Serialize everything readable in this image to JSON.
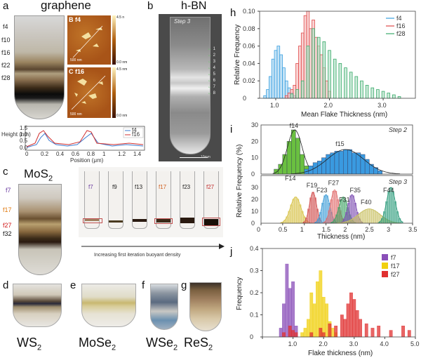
{
  "panels": {
    "a": {
      "letter": "a",
      "title": "graphene",
      "fractions": [
        "f4",
        "f10",
        "f16",
        "f22",
        "f28"
      ],
      "afm": [
        {
          "letter": "B",
          "tag": "f4",
          "scale_top": "4.5 n",
          "scale_bot": "0.0 nm",
          "scalebar": "500 nm"
        },
        {
          "letter": "C",
          "tag": "f16",
          "scale_top": "4.5 nm",
          "scale_bot": "0.0 nm",
          "scalebar": "500 nm"
        }
      ],
      "profile": {
        "ylabel": "Height (nm)",
        "xlabel": "Position (μm)",
        "legend": [
          "f4",
          "f16"
        ],
        "yticks": [
          "1.5",
          "1.0",
          "0.5",
          "0.0"
        ],
        "xticks": [
          "0",
          "0.2",
          "0.4",
          "0.6",
          "0.8",
          "1",
          "1.2",
          "1.4"
        ]
      }
    },
    "b": {
      "letter": "b",
      "title": "h-BN",
      "step": "Step 3",
      "fractions": [
        "1",
        "2",
        "3",
        "4",
        "5",
        "6",
        "7",
        "8"
      ],
      "scalebar": "10mm"
    },
    "c": {
      "letter": "c",
      "title": "MoS",
      "sub": "2",
      "fractions": [
        {
          "label": "f7",
          "color": "#6a3aa0"
        },
        {
          "label": "f17",
          "color": "#e07a10"
        },
        {
          "label": "f27",
          "color": "#d01818"
        },
        {
          "label": "f32",
          "color": "#111111"
        }
      ],
      "tubes": [
        {
          "label": "f7",
          "color": "#6a3aa0"
        },
        {
          "label": "f9",
          "color": "#222222"
        },
        {
          "label": "f13",
          "color": "#222222"
        },
        {
          "label": "f17",
          "color": "#d06020"
        },
        {
          "label": "f23",
          "color": "#222222"
        },
        {
          "label": "f27",
          "color": "#c03030"
        }
      ],
      "arrow_caption": "Increasing first iteration buoyant density"
    },
    "d": {
      "letter": "d",
      "name": "WS",
      "sub": "2"
    },
    "e": {
      "letter": "e",
      "name": "MoSe",
      "sub": "2"
    },
    "f": {
      "letter": "f",
      "name": "WSe",
      "sub": "2"
    },
    "g": {
      "letter": "g",
      "name": "ReS",
      "sub": "2"
    },
    "h": {
      "letter": "h"
    },
    "i": {
      "letter": "i",
      "step2": "Step 2",
      "step3": "Step 3"
    },
    "j": {
      "letter": "j"
    }
  },
  "chart_data": [
    {
      "id": "h",
      "type": "bar",
      "xlabel": "Mean Flake Thickness (nm)",
      "ylabel": "Relative Frequency",
      "xlim": [
        0.7,
        3.6
      ],
      "ylim": [
        0,
        0.1
      ],
      "xticks": [
        1.0,
        2.0,
        3.0
      ],
      "yticks": [
        0,
        0.02,
        0.04,
        0.06,
        0.08,
        0.1
      ],
      "legend_position": "top-right",
      "series": [
        {
          "name": "f4",
          "color": "#3aa0e0",
          "x": [
            0.8,
            0.85,
            0.9,
            0.95,
            1.0,
            1.05,
            1.1,
            1.15,
            1.2,
            1.25,
            1.3,
            1.35
          ],
          "values": [
            0.003,
            0.01,
            0.025,
            0.045,
            0.055,
            0.06,
            0.05,
            0.035,
            0.02,
            0.012,
            0.006,
            0.003
          ]
        },
        {
          "name": "f16",
          "color": "#e04a4a",
          "x": [
            1.2,
            1.25,
            1.3,
            1.35,
            1.4,
            1.45,
            1.5,
            1.55,
            1.6,
            1.65,
            1.7,
            1.75,
            1.8,
            1.85,
            1.9,
            1.95,
            2.0
          ],
          "values": [
            0.003,
            0.006,
            0.01,
            0.015,
            0.04,
            0.06,
            0.075,
            0.095,
            0.1,
            0.08,
            0.09,
            0.07,
            0.06,
            0.05,
            0.035,
            0.02,
            0.008
          ]
        },
        {
          "name": "f28",
          "color": "#3aaa6a",
          "x": [
            1.3,
            1.4,
            1.5,
            1.6,
            1.7,
            1.8,
            1.9,
            2.0,
            2.1,
            2.2,
            2.3,
            2.4,
            2.5,
            2.6,
            2.7,
            2.8,
            2.9,
            3.0,
            3.1,
            3.2,
            3.3
          ],
          "values": [
            0.005,
            0.01,
            0.02,
            0.06,
            0.08,
            0.07,
            0.065,
            0.055,
            0.045,
            0.04,
            0.035,
            0.03,
            0.025,
            0.02,
            0.015,
            0.012,
            0.01,
            0.008,
            0.006,
            0.004,
            0.002
          ]
        }
      ]
    },
    {
      "id": "i-step2",
      "type": "bar",
      "xlabel": "Thickness (nm)",
      "ylabel": "Relative Frequency (%)",
      "xlim": [
        0,
        3.5
      ],
      "ylim": [
        0,
        30
      ],
      "yticks": [
        0,
        10,
        20,
        30
      ],
      "series": [
        {
          "name": "f14",
          "color": "#5ab02a",
          "x": [
            0.35,
            0.45,
            0.55,
            0.65,
            0.75,
            0.85,
            0.95,
            1.05,
            1.15
          ],
          "values": [
            3,
            6,
            12,
            20,
            27,
            22,
            12,
            5,
            2
          ]
        },
        {
          "name": "f15",
          "color": "#2a8ad0",
          "x": [
            1.05,
            1.15,
            1.25,
            1.35,
            1.45,
            1.55,
            1.65,
            1.75,
            1.85,
            1.95,
            2.05,
            2.15,
            2.25,
            2.35,
            2.45,
            2.55,
            2.65,
            2.75
          ],
          "values": [
            3,
            5,
            7,
            8,
            10,
            12,
            13,
            14,
            14,
            15,
            15,
            13,
            13,
            12,
            9,
            6,
            4,
            2
          ]
        }
      ]
    },
    {
      "id": "i-step3",
      "type": "bar",
      "xlabel": "Thickness (nm)",
      "ylabel": "Relative Frequency (%)",
      "xlim": [
        0,
        3.5
      ],
      "ylim": [
        0,
        40
      ],
      "xticks": [
        0,
        0.5,
        1,
        1.5,
        2,
        2.5,
        3,
        3.5
      ],
      "yticks": [
        0,
        10,
        20,
        30
      ],
      "series": [
        {
          "name": "F14",
          "color": "#d6c040",
          "mean": 0.8
        },
        {
          "name": "F19",
          "color": "#d04a4a",
          "mean": 1.2
        },
        {
          "name": "F23",
          "color": "#3a9ad6",
          "mean": 1.5
        },
        {
          "name": "F27",
          "color": "#e06a6a",
          "mean": 1.7
        },
        {
          "name": "F31",
          "color": "#3aa060",
          "mean": 1.9
        },
        {
          "name": "F35",
          "color": "#7a4ab0",
          "mean": 2.1
        },
        {
          "name": "F40",
          "color": "#c8c060",
          "mean": 2.5
        },
        {
          "name": "F44",
          "color": "#2a9a7a",
          "mean": 3.0
        }
      ]
    },
    {
      "id": "j",
      "type": "bar",
      "xlabel": "Flake thickness (nm)",
      "ylabel": "Frequency",
      "xlim": [
        0,
        5.0
      ],
      "ylim": [
        0,
        0.4
      ],
      "xticks": [
        0,
        1.0,
        2.0,
        3.0,
        4.0,
        5.0
      ],
      "yticks": [
        0,
        0.1,
        0.2,
        0.3,
        0.4
      ],
      "legend_position": "top-right",
      "series": [
        {
          "name": "f7",
          "color": "#8a4fb8",
          "x": [
            0.6,
            0.7,
            0.8,
            0.9,
            1.0,
            1.1
          ],
          "values": [
            0.04,
            0.15,
            0.33,
            0.22,
            0.25,
            0.05
          ]
        },
        {
          "name": "f17",
          "color": "#f0d010",
          "x": [
            1.3,
            1.4,
            1.5,
            1.6,
            1.7,
            1.8,
            1.9,
            2.0,
            2.1,
            2.2,
            2.3,
            2.4
          ],
          "values": [
            0.02,
            0.04,
            0.08,
            0.2,
            0.15,
            0.25,
            0.3,
            0.18,
            0.15,
            0.07,
            0.04,
            0.02
          ]
        },
        {
          "name": "f27",
          "color": "#e03030",
          "x": [
            0.7,
            0.9,
            1.0,
            1.1,
            1.6,
            1.9,
            2.0,
            2.2,
            2.4,
            2.6,
            2.7,
            2.8,
            2.9,
            3.0,
            3.1,
            3.2,
            3.4,
            3.6,
            3.8,
            4.2,
            4.6,
            4.8
          ],
          "values": [
            0.02,
            0.05,
            0.03,
            0.02,
            0.02,
            0.04,
            0.02,
            0.06,
            0.05,
            0.1,
            0.08,
            0.15,
            0.2,
            0.17,
            0.12,
            0.08,
            0.06,
            0.04,
            0.05,
            0.03,
            0.05,
            0.03
          ]
        }
      ]
    }
  ]
}
